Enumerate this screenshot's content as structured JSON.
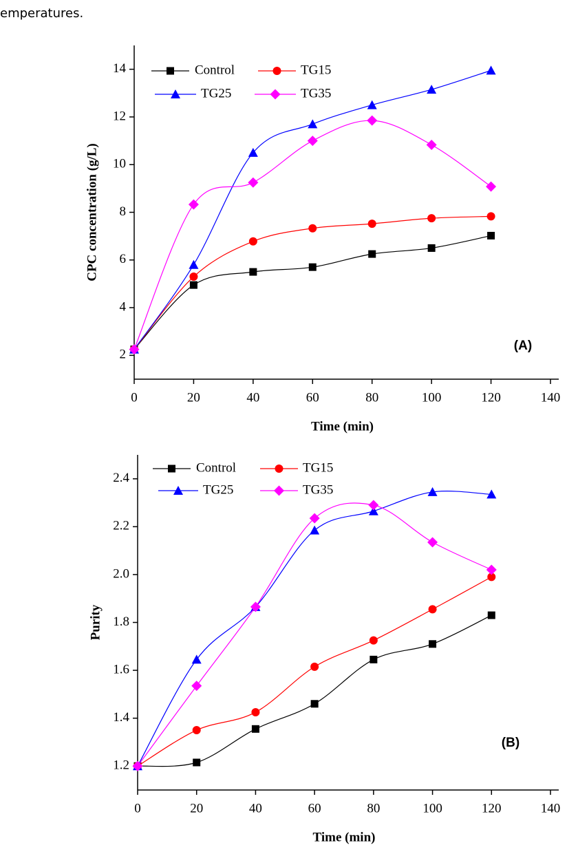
{
  "text": "emperatures.",
  "chart_data": [
    {
      "type": "line",
      "x_label": "Time (min)",
      "y_label": "CPC concentration (g/L)",
      "annotation": "(A)",
      "x": [
        0,
        20,
        40,
        60,
        80,
        100,
        120
      ],
      "xlim": [
        0,
        140
      ],
      "xticks": [
        0,
        20,
        40,
        60,
        80,
        100,
        120,
        140
      ],
      "ylim": [
        1,
        15
      ],
      "yticks": [
        2,
        4,
        6,
        8,
        10,
        12,
        14
      ],
      "series": [
        {
          "name": "Control",
          "color": "#000000",
          "marker": "square",
          "values": [
            2.25,
            4.95,
            5.5,
            5.7,
            6.25,
            6.5,
            7.02
          ]
        },
        {
          "name": "TG15",
          "color": "#ff0000",
          "marker": "circle",
          "values": [
            2.25,
            5.3,
            6.78,
            7.33,
            7.52,
            7.75,
            7.83
          ]
        },
        {
          "name": "TG25",
          "color": "#0000ff",
          "marker": "triangle",
          "values": [
            2.25,
            5.8,
            10.5,
            11.7,
            12.5,
            13.15,
            13.95
          ]
        },
        {
          "name": "TG35",
          "color": "#ff00ff",
          "marker": "diamond",
          "values": [
            2.25,
            8.33,
            9.25,
            11.0,
            11.85,
            10.83,
            9.08
          ]
        }
      ]
    },
    {
      "type": "line",
      "x_label": "Time (min)",
      "y_label": "Purity",
      "annotation": "(B)",
      "x": [
        0,
        20,
        40,
        60,
        80,
        100,
        120
      ],
      "xlim": [
        0,
        140
      ],
      "xticks": [
        0,
        20,
        40,
        60,
        80,
        100,
        120,
        140
      ],
      "ylim": [
        1.1,
        2.5
      ],
      "yticks": [
        1.2,
        1.4,
        1.6,
        1.8,
        {
          "value": 2,
          "label": "2.0"
        },
        2.2,
        2.4
      ],
      "series": [
        {
          "name": "Control",
          "color": "#000000",
          "marker": "square",
          "values": [
            1.2,
            1.215,
            1.355,
            1.46,
            1.645,
            1.71,
            1.83
          ]
        },
        {
          "name": "TG15",
          "color": "#ff0000",
          "marker": "circle",
          "values": [
            1.2,
            1.35,
            1.425,
            1.615,
            1.725,
            1.855,
            1.99
          ]
        },
        {
          "name": "TG25",
          "color": "#0000ff",
          "marker": "triangle",
          "values": [
            1.2,
            1.645,
            1.865,
            2.185,
            2.265,
            2.345,
            2.335
          ]
        },
        {
          "name": "TG35",
          "color": "#ff00ff",
          "marker": "diamond",
          "values": [
            1.2,
            1.535,
            1.865,
            2.235,
            2.29,
            2.135,
            2.02
          ]
        }
      ]
    }
  ]
}
